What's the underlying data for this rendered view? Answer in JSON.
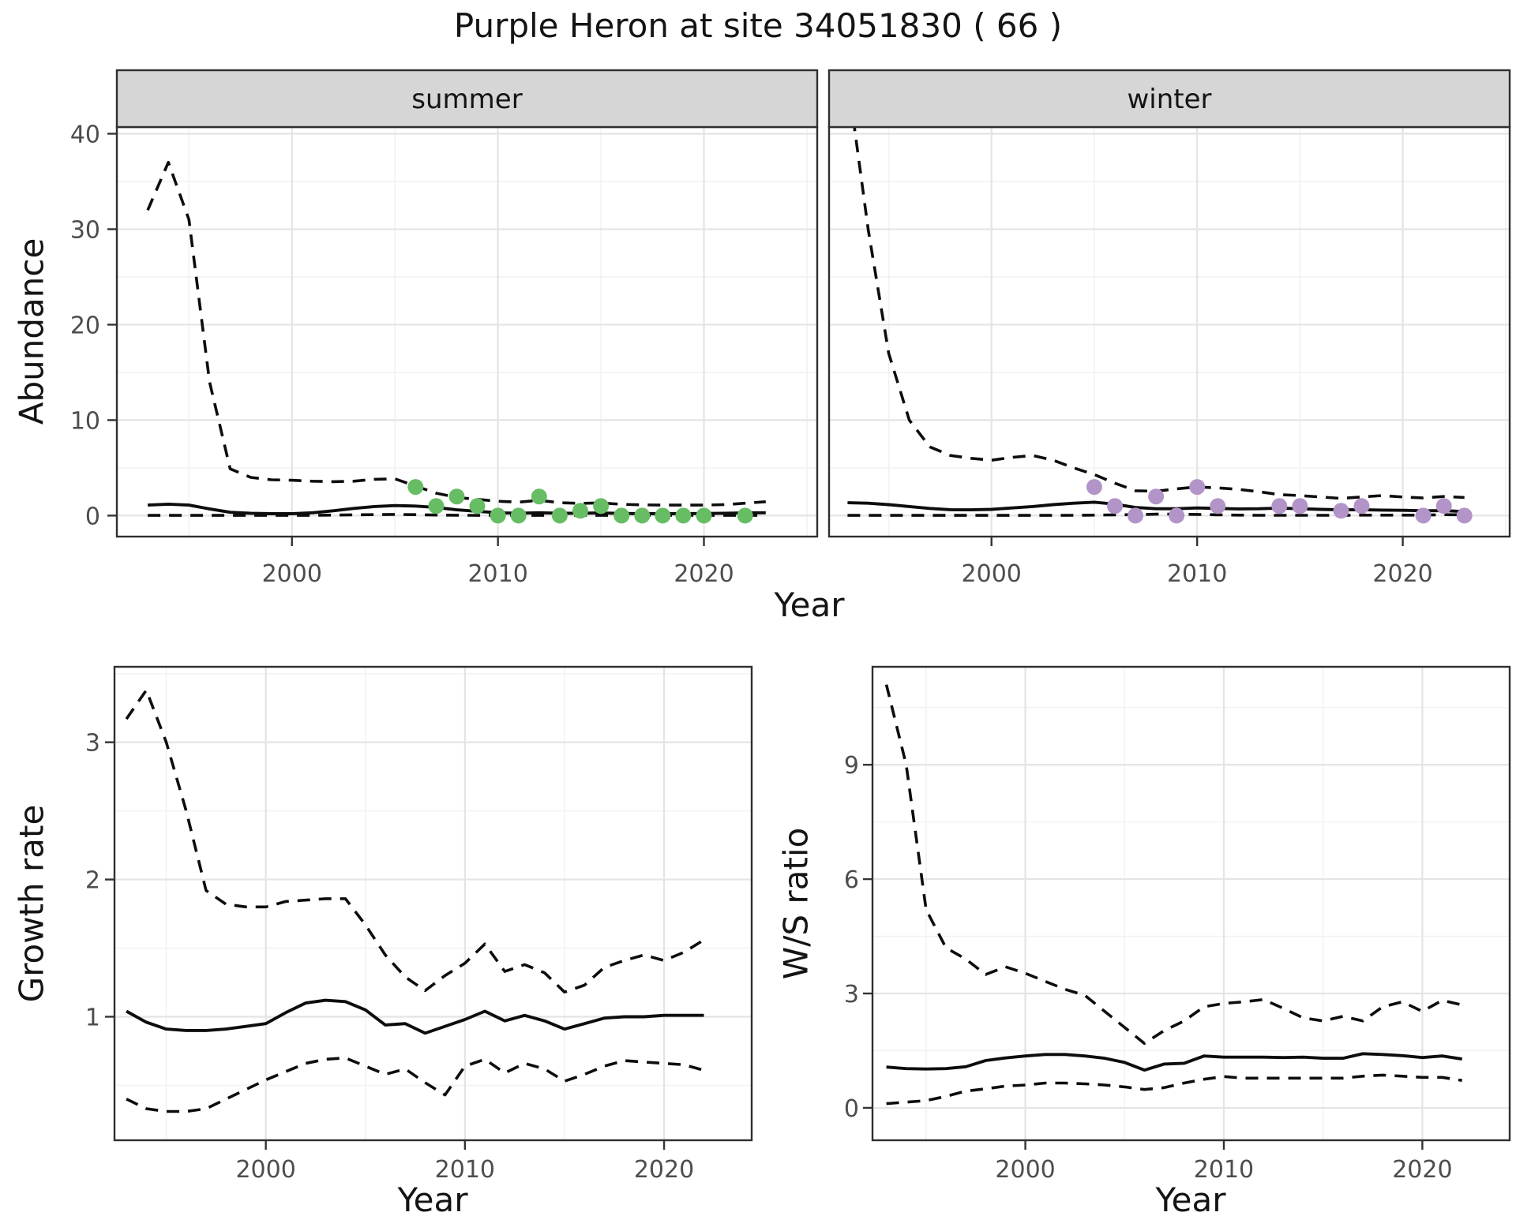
{
  "title": "Purple Heron at site 34051830 ( 66 )",
  "labels": {
    "abundance": "Abundance",
    "growth_rate": "Growth rate",
    "ws_ratio": "W/S ratio",
    "year": "Year"
  },
  "facets": [
    "summer",
    "winter"
  ],
  "colors": {
    "summer_points": "#66BD63",
    "winter_points": "#B394C8",
    "line": "#0D0D0D",
    "tick_text": "#4D4D4D",
    "axis_tick": "#333333",
    "strip_bg": "#D6D6D6",
    "panel_border": "#2F2F2F",
    "panel_bg": "#FFFFFF",
    "grid_major": "#E4E4E4",
    "grid_minor": "#F2F2F2"
  },
  "chart_data": [
    {
      "id": "abundance-summer",
      "type": "line",
      "facet": "summer",
      "xlabel": "Year",
      "ylabel": "Abundance",
      "x": [
        1993,
        1994,
        1995,
        1996,
        1997,
        1998,
        1999,
        2000,
        2001,
        2002,
        2003,
        2004,
        2005,
        2006,
        2007,
        2008,
        2009,
        2010,
        2011,
        2012,
        2013,
        2014,
        2015,
        2016,
        2017,
        2018,
        2019,
        2020,
        2021,
        2022,
        2023
      ],
      "series": [
        {
          "name": "model_mean",
          "style": "solid",
          "values": [
            1.1,
            1.2,
            1.1,
            0.7,
            0.35,
            0.25,
            0.2,
            0.2,
            0.3,
            0.5,
            0.75,
            0.95,
            1.05,
            1.0,
            0.85,
            0.6,
            0.45,
            0.3,
            0.25,
            0.3,
            0.25,
            0.25,
            0.28,
            0.22,
            0.2,
            0.2,
            0.2,
            0.22,
            0.25,
            0.28,
            0.3
          ]
        },
        {
          "name": "upper_95ci",
          "style": "dashed",
          "values": [
            32,
            37,
            31,
            14,
            4.9,
            4.0,
            3.75,
            3.7,
            3.6,
            3.55,
            3.6,
            3.8,
            3.85,
            3.1,
            2.35,
            1.9,
            1.7,
            1.5,
            1.4,
            1.6,
            1.35,
            1.28,
            1.33,
            1.18,
            1.12,
            1.1,
            1.1,
            1.1,
            1.15,
            1.3,
            1.45
          ]
        },
        {
          "name": "lower_95ci",
          "style": "dashed",
          "values": [
            0.02,
            0.02,
            0.02,
            0.02,
            0.02,
            0.02,
            0.02,
            0.02,
            0.03,
            0.05,
            0.08,
            0.1,
            0.12,
            0.1,
            0.06,
            0.04,
            0.02,
            0.02,
            0.02,
            0.02,
            0.02,
            0.02,
            0.02,
            0.02,
            0.02,
            0.02,
            0.02,
            0.02,
            0.02,
            0.02,
            0.02
          ]
        }
      ],
      "points": {
        "name": "observed_counts",
        "color": "#66BD63",
        "data": [
          [
            2006,
            3
          ],
          [
            2007,
            1
          ],
          [
            2008,
            2
          ],
          [
            2009,
            1
          ],
          [
            2010,
            0
          ],
          [
            2011,
            0
          ],
          [
            2012,
            2
          ],
          [
            2013,
            0
          ],
          [
            2014,
            0.5
          ],
          [
            2015,
            1
          ],
          [
            2016,
            0
          ],
          [
            2017,
            0
          ],
          [
            2018,
            0
          ],
          [
            2019,
            0
          ],
          [
            2020,
            0
          ],
          [
            2022,
            0
          ]
        ]
      },
      "xlim": [
        1991.5,
        2025.5
      ],
      "ylim": [
        -2.2,
        40.7
      ],
      "xticks": [
        2000,
        2010,
        2020
      ],
      "minor_xticks": [
        1995,
        2005,
        2015,
        2025
      ],
      "yticks": [
        0,
        10,
        20,
        30,
        40
      ],
      "minor_yticks": [
        5,
        15,
        25,
        35
      ]
    },
    {
      "id": "abundance-winter",
      "type": "line",
      "facet": "winter",
      "xlabel": "Year",
      "ylabel": "Abundance",
      "x": [
        1993,
        1994,
        1995,
        1996,
        1997,
        1998,
        1999,
        2000,
        2001,
        2002,
        2003,
        2004,
        2005,
        2006,
        2007,
        2008,
        2009,
        2010,
        2011,
        2012,
        2013,
        2014,
        2015,
        2016,
        2017,
        2018,
        2019,
        2020,
        2021,
        2022,
        2023
      ],
      "series": [
        {
          "name": "model_mean",
          "style": "solid",
          "values": [
            1.35,
            1.3,
            1.15,
            0.95,
            0.75,
            0.62,
            0.6,
            0.65,
            0.8,
            0.95,
            1.15,
            1.3,
            1.4,
            1.2,
            0.85,
            0.72,
            0.72,
            0.8,
            0.75,
            0.7,
            0.72,
            0.78,
            0.72,
            0.65,
            0.6,
            0.62,
            0.58,
            0.55,
            0.5,
            0.52,
            0.42
          ]
        },
        {
          "name": "upper_95ci",
          "style": "dashed",
          "values": [
            46,
            30,
            17,
            10,
            7.2,
            6.3,
            6.0,
            5.8,
            6.1,
            6.3,
            5.8,
            5.0,
            4.3,
            3.4,
            2.6,
            2.55,
            2.8,
            3.0,
            2.9,
            2.75,
            2.5,
            2.2,
            2.1,
            1.95,
            1.8,
            1.95,
            2.1,
            1.95,
            1.85,
            2.0,
            1.9
          ]
        },
        {
          "name": "lower_95ci",
          "style": "dashed",
          "values": [
            0.02,
            0.02,
            0.02,
            0.02,
            0.02,
            0.02,
            0.02,
            0.02,
            0.02,
            0.02,
            0.02,
            0.03,
            0.05,
            0.08,
            0.1,
            0.15,
            0.15,
            0.12,
            0.08,
            0.05,
            0.03,
            0.03,
            0.03,
            0.03,
            0.03,
            0.05,
            0.05,
            0.05,
            0.05,
            0.1,
            0.08
          ]
        }
      ],
      "points": {
        "name": "observed_counts",
        "color": "#B394C8",
        "data": [
          [
            2005,
            3
          ],
          [
            2006,
            1
          ],
          [
            2007,
            0
          ],
          [
            2008,
            2
          ],
          [
            2009,
            0
          ],
          [
            2010,
            3
          ],
          [
            2011,
            1
          ],
          [
            2014,
            1
          ],
          [
            2015,
            1
          ],
          [
            2017,
            0.5
          ],
          [
            2018,
            1
          ],
          [
            2021,
            0
          ],
          [
            2022,
            1
          ],
          [
            2023,
            0
          ]
        ]
      },
      "xlim": [
        1992.1,
        2025.2
      ],
      "ylim": [
        -2.2,
        40.7
      ],
      "xticks": [
        2000,
        2010,
        2020
      ],
      "minor_xticks": [
        1995,
        2005,
        2015,
        2025
      ],
      "yticks": [
        0,
        10,
        20,
        30,
        40
      ],
      "minor_yticks": [
        5,
        15,
        25,
        35
      ]
    },
    {
      "id": "growth-rate",
      "type": "line",
      "facet": null,
      "xlabel": "Year",
      "ylabel": "Growth rate",
      "x": [
        1993,
        1994,
        1995,
        1996,
        1997,
        1998,
        1999,
        2000,
        2001,
        2002,
        2003,
        2004,
        2005,
        2006,
        2007,
        2008,
        2009,
        2010,
        2011,
        2012,
        2013,
        2014,
        2015,
        2016,
        2017,
        2018,
        2019,
        2020,
        2021,
        2022
      ],
      "series": [
        {
          "name": "model_mean",
          "style": "solid",
          "values": [
            1.04,
            0.96,
            0.91,
            0.9,
            0.9,
            0.91,
            0.93,
            0.95,
            1.03,
            1.1,
            1.12,
            1.11,
            1.05,
            0.94,
            0.95,
            0.88,
            0.93,
            0.98,
            1.04,
            0.97,
            1.01,
            0.97,
            0.91,
            0.95,
            0.99,
            1.0,
            1.0,
            1.01,
            1.01,
            1.01
          ]
        },
        {
          "name": "upper_95ci",
          "style": "dashed",
          "values": [
            3.17,
            3.38,
            3.0,
            2.5,
            1.92,
            1.82,
            1.8,
            1.8,
            1.84,
            1.85,
            1.86,
            1.86,
            1.67,
            1.45,
            1.29,
            1.19,
            1.3,
            1.39,
            1.53,
            1.33,
            1.38,
            1.32,
            1.18,
            1.23,
            1.36,
            1.41,
            1.45,
            1.41,
            1.47,
            1.56
          ]
        },
        {
          "name": "lower_95ci",
          "style": "dashed",
          "values": [
            0.4,
            0.33,
            0.31,
            0.31,
            0.33,
            0.4,
            0.47,
            0.54,
            0.6,
            0.66,
            0.69,
            0.7,
            0.64,
            0.58,
            0.62,
            0.52,
            0.43,
            0.64,
            0.69,
            0.59,
            0.66,
            0.62,
            0.53,
            0.58,
            0.64,
            0.68,
            0.67,
            0.66,
            0.65,
            0.61
          ]
        }
      ],
      "points": null,
      "xlim": [
        1992.4,
        2024.4
      ],
      "ylim": [
        0.1,
        3.55
      ],
      "xticks": [
        2000,
        2010,
        2020
      ],
      "minor_xticks": [
        1995,
        2005,
        2015
      ],
      "yticks": [
        1,
        2,
        3
      ],
      "minor_yticks": [
        0.5,
        1.5,
        2.5,
        3.5
      ]
    },
    {
      "id": "ws-ratio",
      "type": "line",
      "facet": null,
      "xlabel": "Year",
      "ylabel": "W/S ratio",
      "x": [
        1993,
        1994,
        1995,
        1996,
        1997,
        1998,
        1999,
        2000,
        2001,
        2002,
        2003,
        2004,
        2005,
        2006,
        2007,
        2008,
        2009,
        2010,
        2011,
        2012,
        2013,
        2014,
        2015,
        2016,
        2017,
        2018,
        2019,
        2020,
        2021,
        2022
      ],
      "series": [
        {
          "name": "model_mean",
          "style": "solid",
          "values": [
            1.07,
            1.03,
            1.02,
            1.03,
            1.08,
            1.24,
            1.31,
            1.36,
            1.4,
            1.4,
            1.36,
            1.3,
            1.19,
            0.99,
            1.15,
            1.17,
            1.36,
            1.33,
            1.33,
            1.33,
            1.32,
            1.33,
            1.3,
            1.3,
            1.42,
            1.4,
            1.37,
            1.32,
            1.36,
            1.28
          ]
        },
        {
          "name": "upper_95ci",
          "style": "dashed",
          "values": [
            11.1,
            9.0,
            5.2,
            4.2,
            3.9,
            3.5,
            3.7,
            3.53,
            3.32,
            3.11,
            2.95,
            2.53,
            2.11,
            1.69,
            2.03,
            2.28,
            2.65,
            2.74,
            2.78,
            2.84,
            2.61,
            2.36,
            2.28,
            2.4,
            2.28,
            2.65,
            2.78,
            2.53,
            2.82,
            2.7
          ]
        },
        {
          "name": "lower_95ci",
          "style": "dashed",
          "values": [
            0.11,
            0.15,
            0.19,
            0.3,
            0.44,
            0.5,
            0.57,
            0.6,
            0.65,
            0.65,
            0.63,
            0.6,
            0.55,
            0.48,
            0.53,
            0.65,
            0.75,
            0.82,
            0.78,
            0.78,
            0.78,
            0.78,
            0.78,
            0.78,
            0.83,
            0.86,
            0.83,
            0.8,
            0.8,
            0.72
          ]
        }
      ],
      "points": null,
      "xlim": [
        1992.3,
        2024.4
      ],
      "ylim": [
        -0.85,
        11.57
      ],
      "xticks": [
        2000,
        2010,
        2020
      ],
      "minor_xticks": [
        1995,
        2005,
        2015
      ],
      "yticks": [
        0,
        3,
        6,
        9
      ],
      "minor_yticks": [
        1.5,
        4.5,
        7.5,
        10.5
      ]
    }
  ]
}
